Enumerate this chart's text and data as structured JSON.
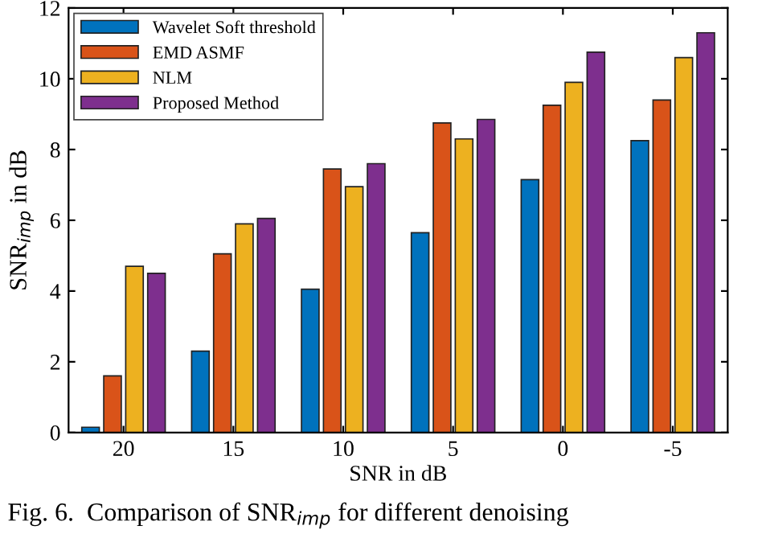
{
  "chart_data": {
    "type": "bar",
    "xlabel": "SNR in dB",
    "ylabel": "SNR$_{imp}$ in dB",
    "categories": [
      "20",
      "15",
      "10",
      "5",
      "0",
      "-5"
    ],
    "series": [
      {
        "name": "Wavelet Soft threshold",
        "color": "#0072bd",
        "values": [
          0.15,
          2.3,
          4.05,
          5.65,
          7.15,
          8.25
        ]
      },
      {
        "name": "EMD ASMF",
        "color": "#d95319",
        "values": [
          1.6,
          5.05,
          7.45,
          8.75,
          9.25,
          9.4
        ]
      },
      {
        "name": "NLM",
        "color": "#edb120",
        "values": [
          4.7,
          5.9,
          6.95,
          8.3,
          9.9,
          10.6
        ]
      },
      {
        "name": "Proposed Method",
        "color": "#7e2f8e",
        "values": [
          4.5,
          6.05,
          7.6,
          8.85,
          10.75,
          11.3
        ]
      }
    ],
    "ylim": [
      0,
      12
    ],
    "yticks": [
      0,
      2,
      4,
      6,
      8,
      10,
      12
    ],
    "grid": false,
    "legend": "top left",
    "annotations": [
      "Fig. 6.  Comparison of SNR$_{imp}$ for different denoising"
    ]
  }
}
